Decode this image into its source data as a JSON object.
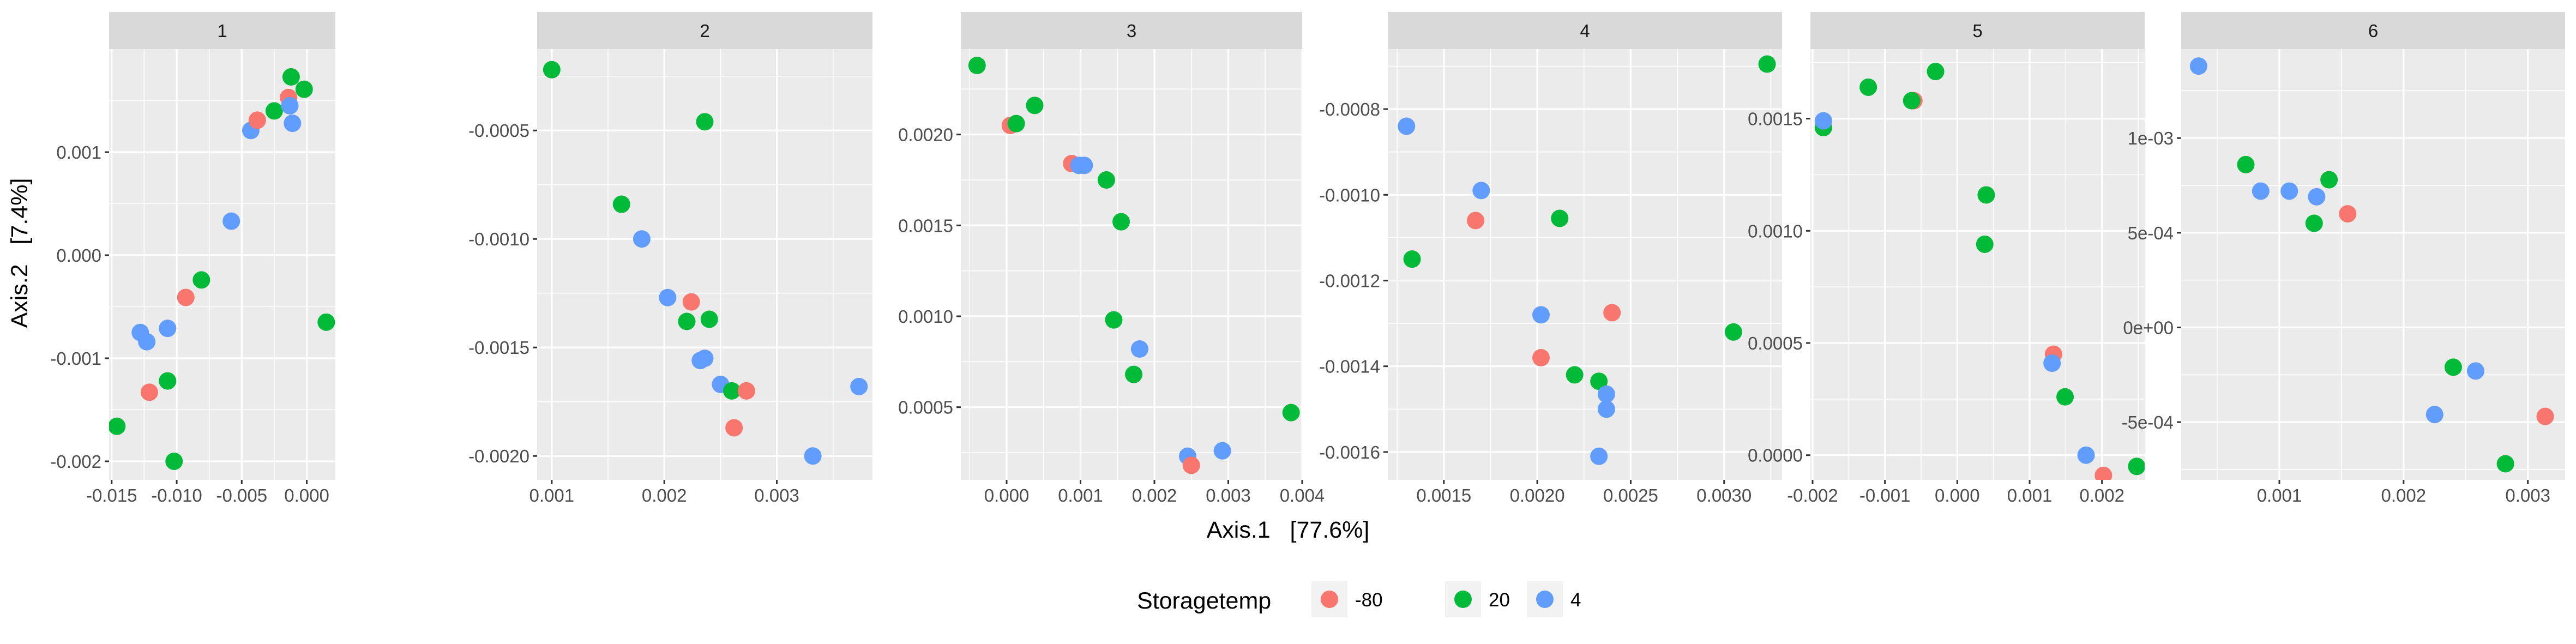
{
  "chart_data": {
    "type": "scatter",
    "xlabel": "Axis.1   [77.6%]",
    "ylabel": "Axis.2   [7.4%]",
    "legend": {
      "title": "Storagetemp",
      "position": "bottom",
      "entries": [
        {
          "label": "-80",
          "color": "#F8766D"
        },
        {
          "label": "20",
          "color": "#00BA38"
        },
        {
          "label": "4",
          "color": "#619CFF"
        }
      ]
    },
    "grid": true,
    "panels": [
      {
        "strip": "1",
        "xlim": [
          -0.0152,
          0.0022
        ],
        "ylim": [
          -0.00218,
          0.002
        ],
        "xticks": [
          {
            "v": -0.015,
            "label": "-0.015"
          },
          {
            "v": -0.01,
            "label": "-0.010"
          },
          {
            "v": -0.005,
            "label": "-0.005"
          },
          {
            "v": 0.0,
            "label": "0.000"
          }
        ],
        "yticks": [
          {
            "v": -0.002,
            "label": "-0.002"
          },
          {
            "v": -0.001,
            "label": "-0.001"
          },
          {
            "v": 0.0,
            "label": "0.000"
          },
          {
            "v": 0.001,
            "label": "0.001"
          }
        ],
        "points": [
          {
            "x": -0.0146,
            "y": -0.00166,
            "g": "20"
          },
          {
            "x": -0.0102,
            "y": -0.002,
            "g": "20"
          },
          {
            "x": -0.0107,
            "y": -0.00122,
            "g": "20"
          },
          {
            "x": -0.0121,
            "y": -0.00133,
            "g": "-80"
          },
          {
            "x": -0.0128,
            "y": -0.00075,
            "g": "4"
          },
          {
            "x": -0.0123,
            "y": -0.00084,
            "g": "4"
          },
          {
            "x": -0.0107,
            "y": -0.00071,
            "g": "4"
          },
          {
            "x": -0.0093,
            "y": -0.00041,
            "g": "-80"
          },
          {
            "x": -0.0081,
            "y": -0.00024,
            "g": "20"
          },
          {
            "x": -0.0058,
            "y": 0.00033,
            "g": "4"
          },
          {
            "x": -0.0043,
            "y": 0.00121,
            "g": "4"
          },
          {
            "x": -0.0038,
            "y": 0.00131,
            "g": "-80"
          },
          {
            "x": -0.0025,
            "y": 0.0014,
            "g": "20"
          },
          {
            "x": -0.0014,
            "y": 0.00153,
            "g": "-80"
          },
          {
            "x": -0.0013,
            "y": 0.00145,
            "g": "4"
          },
          {
            "x": -0.0012,
            "y": 0.00173,
            "g": "20"
          },
          {
            "x": -0.0011,
            "y": 0.00128,
            "g": "4"
          },
          {
            "x": -0.0002,
            "y": 0.00161,
            "g": "20"
          },
          {
            "x": 0.0015,
            "y": -0.00065,
            "g": "20"
          }
        ]
      },
      {
        "strip": "2",
        "xlim": [
          0.00087,
          0.00385
        ],
        "ylim": [
          -0.00211,
          -0.000125
        ],
        "xticks": [
          {
            "v": 0.001,
            "label": "0.001"
          },
          {
            "v": 0.002,
            "label": "0.002"
          },
          {
            "v": 0.003,
            "label": "0.003"
          }
        ],
        "yticks": [
          {
            "v": -0.002,
            "label": "-0.0020"
          },
          {
            "v": -0.0015,
            "label": "-0.0015"
          },
          {
            "v": -0.001,
            "label": "-0.0010"
          },
          {
            "v": -0.0005,
            "label": "-0.0005"
          }
        ],
        "points": [
          {
            "x": 0.001,
            "y": -0.00022,
            "g": "20"
          },
          {
            "x": 0.00236,
            "y": -0.00046,
            "g": "20"
          },
          {
            "x": 0.00162,
            "y": -0.00084,
            "g": "20"
          },
          {
            "x": 0.0018,
            "y": -0.001,
            "g": "4"
          },
          {
            "x": 0.00203,
            "y": -0.00127,
            "g": "4"
          },
          {
            "x": 0.00224,
            "y": -0.00129,
            "g": "-80"
          },
          {
            "x": 0.0022,
            "y": -0.00138,
            "g": "20"
          },
          {
            "x": 0.0024,
            "y": -0.00137,
            "g": "20"
          },
          {
            "x": 0.00232,
            "y": -0.00156,
            "g": "4"
          },
          {
            "x": 0.00236,
            "y": -0.00155,
            "g": "4"
          },
          {
            "x": 0.0025,
            "y": -0.00167,
            "g": "4"
          },
          {
            "x": 0.0026,
            "y": -0.0017,
            "g": "20"
          },
          {
            "x": 0.00273,
            "y": -0.0017,
            "g": "-80"
          },
          {
            "x": 0.00262,
            "y": -0.00187,
            "g": "-80"
          },
          {
            "x": 0.00332,
            "y": -0.002,
            "g": "4"
          },
          {
            "x": 0.00373,
            "y": -0.00168,
            "g": "4"
          }
        ]
      },
      {
        "strip": "3",
        "xlim": [
          -0.00062,
          0.004
        ],
        "ylim": [
          0.0001,
          0.00247
        ],
        "xticks": [
          {
            "v": 0.0,
            "label": "0.000"
          },
          {
            "v": 0.001,
            "label": "0.001"
          },
          {
            "v": 0.002,
            "label": "0.002"
          },
          {
            "v": 0.003,
            "label": "0.003"
          },
          {
            "v": 0.004,
            "label": "0.004"
          }
        ],
        "yticks": [
          {
            "v": 0.0005,
            "label": "0.0005"
          },
          {
            "v": 0.001,
            "label": "0.0010"
          },
          {
            "v": 0.0015,
            "label": "0.0015"
          },
          {
            "v": 0.002,
            "label": "0.0020"
          }
        ],
        "points": [
          {
            "x": -0.0004,
            "y": 0.00238,
            "g": "20"
          },
          {
            "x": 5e-05,
            "y": 0.00205,
            "g": "-80"
          },
          {
            "x": 0.00013,
            "y": 0.00206,
            "g": "20"
          },
          {
            "x": 0.00038,
            "y": 0.00216,
            "g": "20"
          },
          {
            "x": 0.00088,
            "y": 0.00184,
            "g": "-80"
          },
          {
            "x": 0.00098,
            "y": 0.00183,
            "g": "4"
          },
          {
            "x": 0.00105,
            "y": 0.00183,
            "g": "4"
          },
          {
            "x": 0.00135,
            "y": 0.00175,
            "g": "20"
          },
          {
            "x": 0.00155,
            "y": 0.00152,
            "g": "20"
          },
          {
            "x": 0.00145,
            "y": 0.00098,
            "g": "20"
          },
          {
            "x": 0.0018,
            "y": 0.00082,
            "g": "4"
          },
          {
            "x": 0.00172,
            "y": 0.00068,
            "g": "20"
          },
          {
            "x": 0.00245,
            "y": 0.00023,
            "g": "4"
          },
          {
            "x": 0.0025,
            "y": 0.00018,
            "g": "-80"
          },
          {
            "x": 0.00292,
            "y": 0.00026,
            "g": "4"
          },
          {
            "x": 0.00385,
            "y": 0.00047,
            "g": "20"
          }
        ]
      },
      {
        "strip": "4",
        "xlim": [
          0.0012,
          0.00331
        ],
        "ylim": [
          -0.001665,
          -0.00066
        ],
        "xticks": [
          {
            "v": 0.0015,
            "label": "0.0015"
          },
          {
            "v": 0.002,
            "label": "0.0020"
          },
          {
            "v": 0.0025,
            "label": "0.0025"
          },
          {
            "v": 0.003,
            "label": "0.0030"
          }
        ],
        "yticks": [
          {
            "v": -0.0016,
            "label": "-0.0016"
          },
          {
            "v": -0.0014,
            "label": "-0.0014"
          },
          {
            "v": -0.0012,
            "label": "-0.0012"
          },
          {
            "v": -0.001,
            "label": "-0.0010"
          },
          {
            "v": -0.0008,
            "label": "-0.0008"
          }
        ],
        "points": [
          {
            "x": 0.00323,
            "y": -0.000695,
            "g": "20"
          },
          {
            "x": 0.0013,
            "y": -0.00084,
            "g": "4"
          },
          {
            "x": 0.0017,
            "y": -0.00099,
            "g": "4"
          },
          {
            "x": 0.00167,
            "y": -0.00106,
            "g": "-80"
          },
          {
            "x": 0.00212,
            "y": -0.001055,
            "g": "20"
          },
          {
            "x": 0.00133,
            "y": -0.00115,
            "g": "20"
          },
          {
            "x": 0.00202,
            "y": -0.00128,
            "g": "4"
          },
          {
            "x": 0.0024,
            "y": -0.001275,
            "g": "-80"
          },
          {
            "x": 0.00305,
            "y": -0.00132,
            "g": "20"
          },
          {
            "x": 0.00202,
            "y": -0.00138,
            "g": "-80"
          },
          {
            "x": 0.0022,
            "y": -0.00142,
            "g": "20"
          },
          {
            "x": 0.00233,
            "y": -0.001435,
            "g": "20"
          },
          {
            "x": 0.00237,
            "y": -0.001465,
            "g": "4"
          },
          {
            "x": 0.00237,
            "y": -0.0015,
            "g": "4"
          },
          {
            "x": 0.00233,
            "y": -0.00161,
            "g": "4"
          }
        ]
      },
      {
        "strip": "5",
        "xlim": [
          -0.00203,
          0.00259
        ],
        "ylim": [
          -0.00011,
          0.00181
        ],
        "xticks": [
          {
            "v": -0.002,
            "label": "-0.002"
          },
          {
            "v": -0.001,
            "label": "-0.001"
          },
          {
            "v": 0.0,
            "label": "0.000"
          },
          {
            "v": 0.001,
            "label": "0.001"
          },
          {
            "v": 0.002,
            "label": "0.002"
          }
        ],
        "yticks": [
          {
            "v": 0.0,
            "label": "0.0000"
          },
          {
            "v": 0.0005,
            "label": "0.0005"
          },
          {
            "v": 0.001,
            "label": "0.0010"
          },
          {
            "v": 0.0015,
            "label": "0.0015"
          }
        ],
        "points": [
          {
            "x": -0.00185,
            "y": 0.00146,
            "g": "20"
          },
          {
            "x": -0.00185,
            "y": 0.00149,
            "g": "4"
          },
          {
            "x": -0.00123,
            "y": 0.00164,
            "g": "20"
          },
          {
            "x": -0.0006,
            "y": 0.00158,
            "g": "-80"
          },
          {
            "x": -0.00063,
            "y": 0.00158,
            "g": "20"
          },
          {
            "x": -0.0003,
            "y": 0.00171,
            "g": "20"
          },
          {
            "x": 0.0004,
            "y": 0.00116,
            "g": "20"
          },
          {
            "x": 0.00038,
            "y": 0.00094,
            "g": "20"
          },
          {
            "x": 0.00133,
            "y": 0.00045,
            "g": "-80"
          },
          {
            "x": 0.00131,
            "y": 0.00041,
            "g": "4"
          },
          {
            "x": 0.00149,
            "y": 0.00026,
            "g": "20"
          },
          {
            "x": 0.00178,
            "y": 0.0,
            "g": "4"
          },
          {
            "x": 0.00202,
            "y": -9e-05,
            "g": "-80"
          },
          {
            "x": 0.00248,
            "y": -5e-05,
            "g": "20"
          }
        ]
      },
      {
        "strip": "6",
        "xlim": [
          0.00021,
          0.0033
        ],
        "ylim": [
          -0.000805,
          0.00147
        ],
        "xticks": [
          {
            "v": 0.001,
            "label": "0.001"
          },
          {
            "v": 0.002,
            "label": "0.002"
          },
          {
            "v": 0.003,
            "label": "0.003"
          }
        ],
        "yticks": [
          {
            "v": -0.0005,
            "label": "-5e-04"
          },
          {
            "v": 0.0,
            "label": "0e+00"
          },
          {
            "v": 0.0005,
            "label": "5e-04"
          },
          {
            "v": 0.001,
            "label": "1e-03"
          }
        ],
        "points": [
          {
            "x": 0.00035,
            "y": 0.00138,
            "g": "4"
          },
          {
            "x": 0.00073,
            "y": 0.00086,
            "g": "20"
          },
          {
            "x": 0.00085,
            "y": 0.00072,
            "g": "4"
          },
          {
            "x": 0.00108,
            "y": 0.00072,
            "g": "4"
          },
          {
            "x": 0.0013,
            "y": 0.00069,
            "g": "4"
          },
          {
            "x": 0.0014,
            "y": 0.00078,
            "g": "20"
          },
          {
            "x": 0.00128,
            "y": 0.00055,
            "g": "20"
          },
          {
            "x": 0.00155,
            "y": 0.0006,
            "g": "-80"
          },
          {
            "x": 0.0024,
            "y": -0.00021,
            "g": "20"
          },
          {
            "x": 0.00258,
            "y": -0.00023,
            "g": "4"
          },
          {
            "x": 0.00225,
            "y": -0.00046,
            "g": "4"
          },
          {
            "x": 0.00282,
            "y": -0.00072,
            "g": "20"
          },
          {
            "x": 0.00314,
            "y": -0.00047,
            "g": "-80"
          }
        ]
      }
    ]
  }
}
